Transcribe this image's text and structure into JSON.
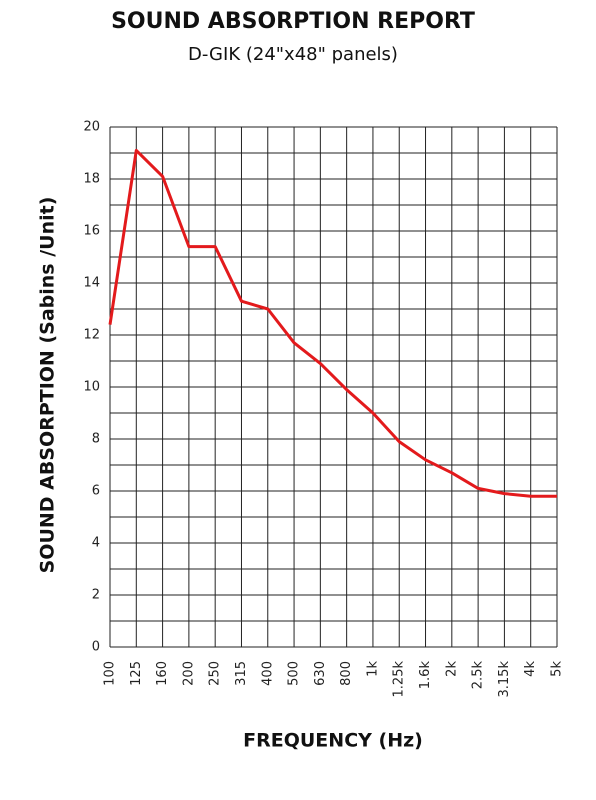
{
  "chart_data": {
    "type": "line",
    "title": "SOUND ABSORPTION REPORT",
    "subtitle": "D-GIK (24\"x48\" panels)",
    "x_label": "FREQUENCY (Hz)",
    "y_label": "SOUND ABSORPTION (Sabins /Unit)",
    "categories": [
      "100",
      "125",
      "160",
      "200",
      "250",
      "315",
      "400",
      "500",
      "630",
      "800",
      "1k",
      "1.25k",
      "1.6k",
      "2k",
      "2.5k",
      "3.15k",
      "4k",
      "5k"
    ],
    "values": [
      12.4,
      19.1,
      18.1,
      15.4,
      15.4,
      13.3,
      13.0,
      11.7,
      10.9,
      9.9,
      9.0,
      7.9,
      7.2,
      6.7,
      6.1,
      5.9,
      5.8,
      5.8
    ],
    "color": "#e31a1c",
    "ylim": [
      0,
      20
    ],
    "yticks": [
      0,
      2,
      4,
      6,
      8,
      10,
      12,
      14,
      16,
      18,
      20
    ],
    "minor_yticks": [
      1,
      3,
      5,
      7,
      9,
      11,
      13,
      15,
      17,
      19
    ],
    "grid": true
  }
}
